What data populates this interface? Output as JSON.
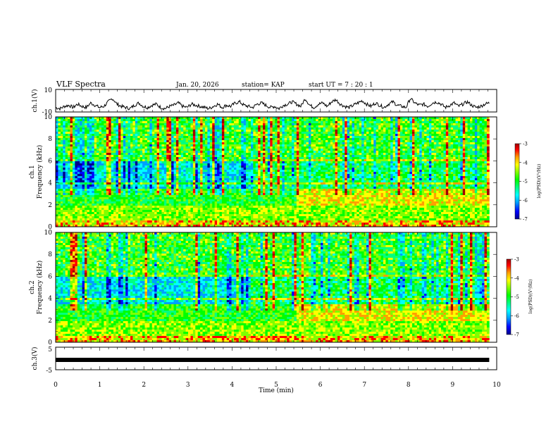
{
  "header": {
    "title": "VLF Spectra",
    "date": "Jan. 20, 2026",
    "station": "station= KAP",
    "start": "start  UT  =   7 : 20 : 1"
  },
  "chart_data": [
    {
      "type": "line",
      "ylabel": "ch.1(V)",
      "ylim": [
        -10,
        10
      ],
      "yticks": [
        "10",
        "-10"
      ],
      "x_range_min": [
        0,
        9.83
      ],
      "mean_level": -5,
      "series": [
        {
          "values": [
            -6,
            -7,
            -5,
            -4,
            -6,
            -3,
            -5,
            -6,
            -2,
            -4,
            -6,
            -5,
            -1,
            2,
            -3,
            -5,
            -6,
            -7,
            -4,
            -2,
            -5,
            -6,
            -4,
            -3,
            -6,
            -7,
            -5,
            -4,
            -2,
            -5,
            -6,
            -3,
            -4,
            -5,
            -6,
            -7,
            -5,
            -3,
            -6,
            -4,
            -5,
            -2,
            -1,
            -4,
            -5,
            -6,
            -3,
            -2,
            -4,
            -6,
            -5,
            -7,
            -4,
            -3,
            -1,
            -3,
            -5,
            2,
            -4,
            -6,
            -3,
            -2,
            -5,
            -1,
            1,
            -3,
            -5,
            -6,
            -4,
            -2,
            0,
            -3,
            -5,
            -2,
            -4,
            -6,
            -3,
            -1,
            -4,
            -5,
            -6,
            2,
            -2,
            -4,
            -3,
            -5,
            -2,
            -1,
            -3,
            -6,
            -4,
            -2,
            -5,
            -3,
            -1,
            -4,
            -6,
            -5,
            -3,
            -2
          ]
        }
      ]
    },
    {
      "type": "heatmap",
      "ylabel": "ch.1\nFrequency (kHz)",
      "ylim": [
        0,
        10
      ],
      "yticks": [
        "0",
        "2",
        "4",
        "6",
        "8",
        "10"
      ],
      "x_range_min": [
        0,
        9.83
      ],
      "colorbar": {
        "range": [
          -7,
          -3
        ],
        "ticks": [
          "-3",
          "-4",
          "-5",
          "-6",
          "-7"
        ],
        "label": "log(PSD)(V²/Hz)"
      }
    },
    {
      "type": "heatmap",
      "ylabel": "ch.2\nFrequency (kHz)",
      "ylim": [
        0,
        10
      ],
      "yticks": [
        "0",
        "2",
        "4",
        "6",
        "8",
        "10"
      ],
      "x_range_min": [
        0,
        9.83
      ],
      "colorbar": {
        "range": [
          -7,
          -3
        ],
        "ticks": [
          "-3",
          "-4",
          "-5",
          "-6",
          "-7"
        ],
        "label": "log(PSD)(V²/Hz)"
      }
    },
    {
      "type": "line",
      "ylabel": "ch.3(V)",
      "ylim": [
        -5,
        5
      ],
      "yticks": [
        "5",
        "-5"
      ],
      "x_range_min": [
        0,
        9.83
      ],
      "series": [
        {
          "values": [
            -1,
            -1
          ]
        }
      ]
    }
  ],
  "xaxis": {
    "label": "Time (min)",
    "range": [
      0,
      10
    ],
    "ticks": [
      "0",
      "1",
      "2",
      "3",
      "4",
      "5",
      "6",
      "7",
      "8",
      "9",
      "10"
    ]
  },
  "colors": {
    "background": "#ffffff",
    "axis": "#000000",
    "colormap": [
      "#00008b",
      "#0000ff",
      "#00a0ff",
      "#00ffff",
      "#00ff80",
      "#00ff00",
      "#80ff00",
      "#ffff00",
      "#ffa000",
      "#ff0000",
      "#a00000"
    ]
  }
}
